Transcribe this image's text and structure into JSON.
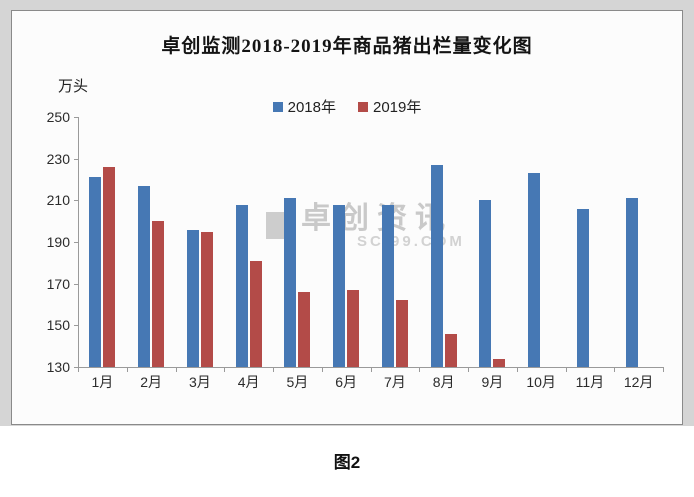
{
  "page": {
    "caption": "图2"
  },
  "chart": {
    "title": "卓创监测2018-2019年商品猪出栏量变化图",
    "unit_label": "万头",
    "watermark": {
      "line1": "卓创资讯",
      "line2": "SCI99.COM"
    }
  },
  "chart_data": {
    "type": "bar",
    "title": "卓创监测2018-2019年商品猪出栏量变化图",
    "ylabel": "万头",
    "categories": [
      "1月",
      "2月",
      "3月",
      "4月",
      "5月",
      "6月",
      "7月",
      "8月",
      "9月",
      "10月",
      "11月",
      "12月"
    ],
    "series": [
      {
        "name": "2018年",
        "color": "#4678B4",
        "values": [
          221,
          217,
          196,
          208,
          211,
          208,
          208,
          227,
          210,
          223,
          206,
          211
        ]
      },
      {
        "name": "2019年",
        "color": "#B34B48",
        "values": [
          226,
          200,
          195,
          181,
          166,
          167,
          162,
          146,
          134,
          null,
          null,
          null
        ]
      }
    ],
    "ylim": [
      130,
      250
    ],
    "yticks": [
      130,
      150,
      170,
      190,
      210,
      230,
      250
    ],
    "grid": false,
    "legend_position": "top-center"
  }
}
